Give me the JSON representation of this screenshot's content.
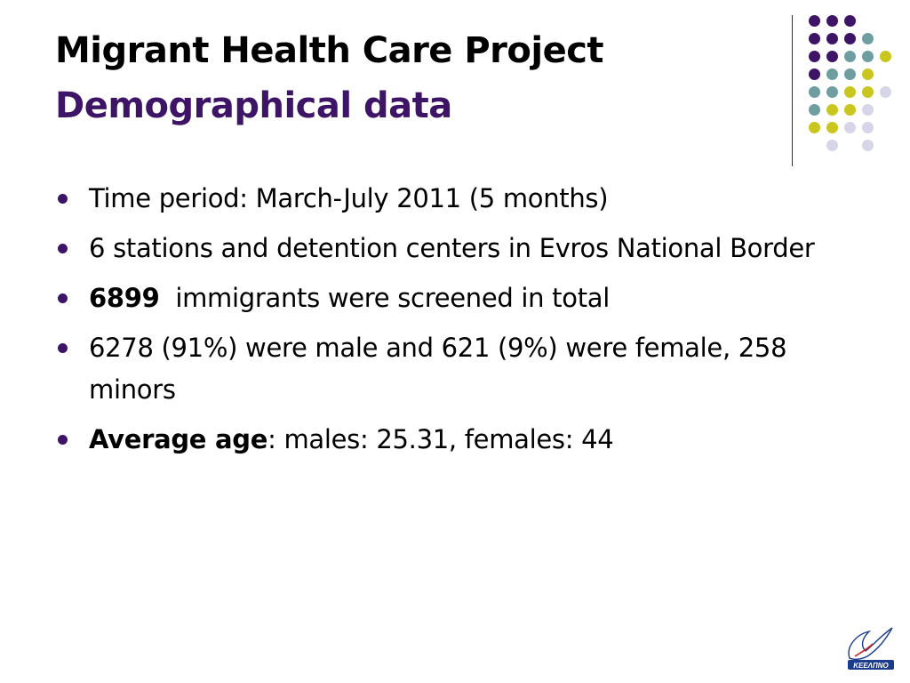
{
  "slide": {
    "title": "Migrant Health Care Project",
    "subtitle": "Demographical data"
  },
  "bullets": [
    {
      "text": "Time period: March-July 2011 (5 months)"
    },
    {
      "text": "6 stations and detention centers in Evros National Border"
    },
    {
      "bold": "6899",
      "text": "  immigrants were screened in total"
    },
    {
      "text": "6278 (91%) were male and 621 (9%) were female, 258 minors"
    },
    {
      "bold": "Average age",
      "text": ": males: 25.31, females: 44"
    }
  ],
  "logo": {
    "text": "ΚΕΕΛΠΝΟ"
  },
  "colors": {
    "purple": "#3d1466",
    "teal": "#6f9ea0",
    "yellow_green": "#c9c71f",
    "lavender": "#d6d6e8"
  }
}
